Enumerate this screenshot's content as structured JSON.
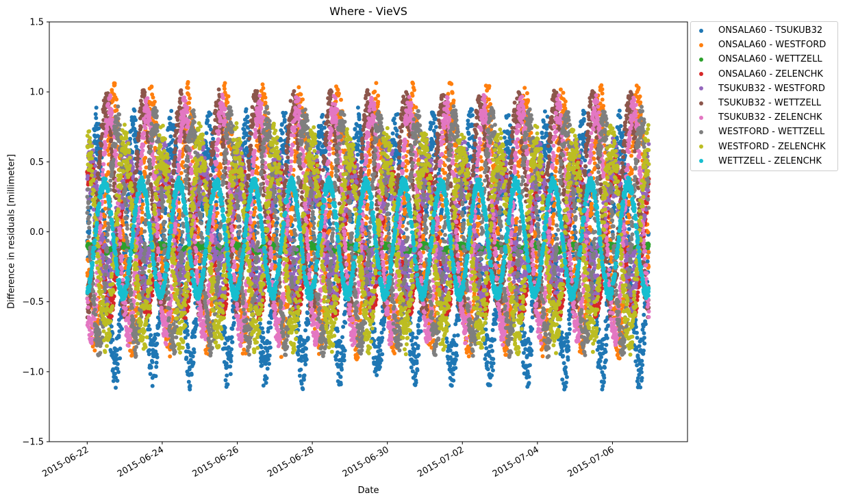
{
  "chart_data": {
    "type": "scatter",
    "title": "Where - VieVS",
    "xlabel": "Date",
    "ylabel": "Difference in residuals [millimeter]",
    "xlim": [
      "2015-06-20T23:46:00",
      "2015-07-08T00:00:00"
    ],
    "ylim": [
      -1.5,
      1.5
    ],
    "x_ticks": [
      "2015-06-22",
      "2015-06-24",
      "2015-06-26",
      "2015-06-28",
      "2015-06-30",
      "2015-07-02",
      "2015-07-04",
      "2015-07-06"
    ],
    "y_ticks": [
      -1.5,
      -1.0,
      -0.5,
      0.0,
      0.5,
      1.0,
      1.5
    ],
    "y_tick_labels": [
      "−1.5",
      "−1.0",
      "−0.5",
      "0.0",
      "0.5",
      "1.0",
      "1.5"
    ],
    "grid": false,
    "legend_position": "outside top-right",
    "x_range": [
      "2015-06-22T00:00:00",
      "2015-07-06T23:00:00"
    ],
    "series": [
      {
        "name": "ONSALA60 - TSUKUB32",
        "color": "#1f77b4",
        "center": -0.12,
        "amplitude": 0.83,
        "phase_day": 0.0,
        "scatter": 0.18,
        "period_hours": 23.934
      },
      {
        "name": "ONSALA60 - WESTFORD",
        "color": "#ff7f0e",
        "center": 0.08,
        "amplitude": 0.82,
        "phase_day": 0.55,
        "scatter": 0.18,
        "period_hours": 23.934
      },
      {
        "name": "ONSALA60 - WETTZELL",
        "color": "#2ca02c",
        "center": -0.12,
        "amplitude": 0.02,
        "phase_day": 0.3,
        "scatter": 0.02,
        "period_hours": 23.934
      },
      {
        "name": "ONSALA60 - ZELENCHK",
        "color": "#d62728",
        "center": -0.05,
        "amplitude": 0.5,
        "phase_day": 0.15,
        "scatter": 0.08,
        "period_hours": 23.934
      },
      {
        "name": "TSUKUB32 - WESTFORD",
        "color": "#9467bd",
        "center": 0.05,
        "amplitude": 0.4,
        "phase_day": 0.2,
        "scatter": 0.22,
        "period_hours": 23.934
      },
      {
        "name": "TSUKUB32 - WETTZELL",
        "color": "#8c564b",
        "center": 0.2,
        "amplitude": 0.7,
        "phase_day": 0.75,
        "scatter": 0.12,
        "period_hours": 23.934
      },
      {
        "name": "TSUKUB32 - ZELENCHK",
        "color": "#e377c2",
        "center": 0.08,
        "amplitude": 0.8,
        "phase_day": 0.65,
        "scatter": 0.1,
        "period_hours": 23.934
      },
      {
        "name": "WESTFORD - WETTZELL",
        "color": "#7f7f7f",
        "center": 0.0,
        "amplitude": 0.78,
        "phase_day": 0.45,
        "scatter": 0.12,
        "period_hours": 23.934
      },
      {
        "name": "WESTFORD - ZELENCHK",
        "color": "#bcbd22",
        "center": -0.05,
        "amplitude": 0.65,
        "phase_day": 0.25,
        "scatter": 0.18,
        "period_hours": 23.934
      },
      {
        "name": "WETTZELL - ZELENCHK",
        "color": "#17becf",
        "center": -0.05,
        "amplitude": 0.4,
        "phase_day": 0.8,
        "scatter": 0.04,
        "period_hours": 23.934
      }
    ]
  }
}
